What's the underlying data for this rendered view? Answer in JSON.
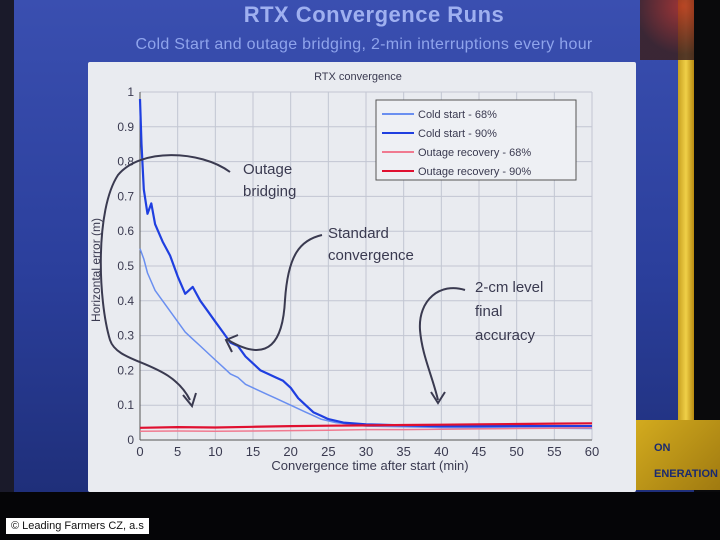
{
  "slide": {
    "title": "RTX Convergence Runs",
    "subtitle": "Cold Start and outage bridging, 2-min interruptions every hour",
    "banner_line1": "ON",
    "banner_line2": "ENERATION",
    "copyright": "© Leading Farmers CZ, a.s"
  },
  "colors": {
    "cold_68": "#6a8ff0",
    "cold_90": "#1f3fe0",
    "outage_68": "#f07a90",
    "outage_90": "#e01030",
    "slide_bg": "#2b3f9c",
    "plot_bg": "#e9ebf0",
    "annotation_text": "#3a3a50"
  },
  "chart_data": {
    "type": "line",
    "title": "RTX convergence",
    "xlabel": "Convergence time after start (min)",
    "ylabel": "Horizontal error (m)",
    "xlim": [
      0,
      60
    ],
    "ylim": [
      0,
      1
    ],
    "xticks": [
      0,
      5,
      10,
      15,
      20,
      25,
      30,
      35,
      40,
      45,
      50,
      55,
      60
    ],
    "yticks": [
      0,
      0.1,
      0.2,
      0.3,
      0.4,
      0.5,
      0.6,
      0.7,
      0.8,
      0.9,
      1
    ],
    "grid": true,
    "legend_position": "top-right",
    "series": [
      {
        "name": "Cold start - 68%",
        "color": "#6a8ff0",
        "x": [
          0,
          0.5,
          1,
          2,
          3,
          4,
          5,
          6,
          7,
          8,
          9,
          10,
          11,
          12,
          13,
          14,
          15,
          16,
          17,
          18,
          19,
          20,
          21,
          22,
          23,
          24,
          25,
          26,
          28,
          30,
          35,
          40,
          45,
          50,
          55,
          60
        ],
        "y": [
          0.55,
          0.52,
          0.48,
          0.43,
          0.4,
          0.37,
          0.34,
          0.31,
          0.29,
          0.27,
          0.25,
          0.23,
          0.21,
          0.19,
          0.18,
          0.16,
          0.15,
          0.14,
          0.13,
          0.12,
          0.11,
          0.1,
          0.09,
          0.08,
          0.07,
          0.06,
          0.055,
          0.05,
          0.045,
          0.04,
          0.038,
          0.036,
          0.035,
          0.034,
          0.034,
          0.033
        ]
      },
      {
        "name": "Cold start - 90%",
        "color": "#1f3fe0",
        "x": [
          0,
          0.2,
          0.5,
          1,
          1.5,
          2,
          3,
          4,
          5,
          6,
          7,
          8,
          9,
          10,
          11,
          12,
          13,
          14,
          15,
          16,
          17,
          18,
          19,
          20,
          21,
          22,
          23,
          24,
          25,
          27,
          30,
          35,
          40,
          45,
          50,
          55,
          60
        ],
        "y": [
          0.98,
          0.85,
          0.72,
          0.65,
          0.68,
          0.62,
          0.57,
          0.53,
          0.47,
          0.42,
          0.44,
          0.4,
          0.37,
          0.34,
          0.31,
          0.28,
          0.27,
          0.24,
          0.22,
          0.2,
          0.19,
          0.18,
          0.17,
          0.15,
          0.12,
          0.1,
          0.08,
          0.07,
          0.06,
          0.05,
          0.045,
          0.042,
          0.04,
          0.04,
          0.04,
          0.04,
          0.04
        ]
      },
      {
        "name": "Outage recovery - 68%",
        "color": "#f07a90",
        "x": [
          0,
          5,
          10,
          15,
          20,
          25,
          30,
          35,
          40,
          45,
          50,
          55,
          60
        ],
        "y": [
          0.025,
          0.026,
          0.025,
          0.026,
          0.027,
          0.028,
          0.03,
          0.03,
          0.031,
          0.032,
          0.033,
          0.034,
          0.035
        ]
      },
      {
        "name": "Outage recovery - 90%",
        "color": "#e01030",
        "x": [
          0,
          5,
          10,
          15,
          20,
          25,
          30,
          35,
          40,
          45,
          50,
          55,
          60
        ],
        "y": [
          0.035,
          0.037,
          0.036,
          0.038,
          0.04,
          0.041,
          0.042,
          0.043,
          0.044,
          0.045,
          0.046,
          0.047,
          0.048
        ]
      }
    ],
    "annotations": [
      "Outage bridging",
      "Standard convergence",
      "2-cm level final accuracy"
    ]
  }
}
